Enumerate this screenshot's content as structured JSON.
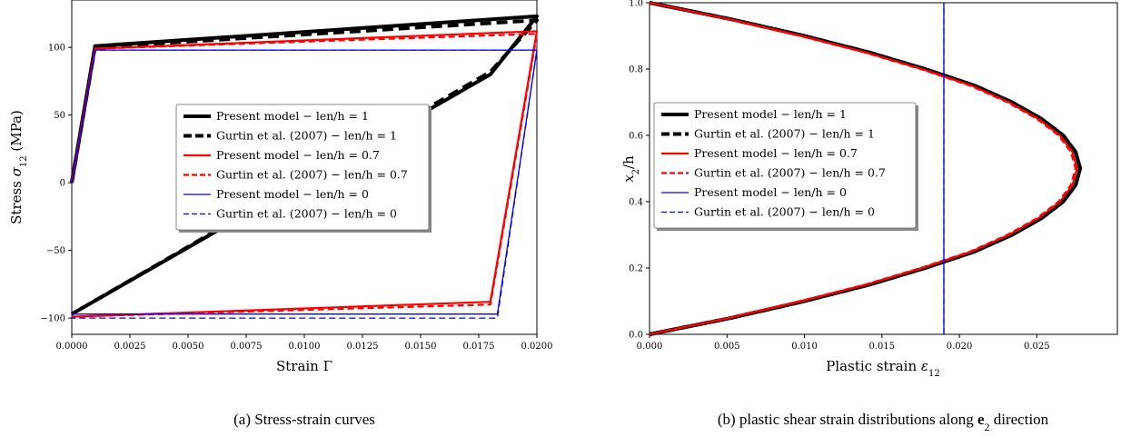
{
  "captions": {
    "a": "(a) Stress-strain curves",
    "b_prefix": "(b) plastic shear strain distributions along ",
    "b_vec": "e",
    "b_sub": "2",
    "b_suffix": " direction"
  },
  "chart_data": [
    {
      "type": "line",
      "xlabel": "Strain Γ",
      "ylabel": "Stress σ12 (MPa)",
      "ylabel_parts": {
        "pre": "Stress ",
        "sym": "σ",
        "sub": "12",
        "post": " (MPa)"
      },
      "xlim": [
        0.0,
        0.02
      ],
      "ylim": [
        -112,
        135
      ],
      "xticks": [
        "0.0000",
        "0.0025",
        "0.0050",
        "0.0075",
        "0.0100",
        "0.0125",
        "0.0150",
        "0.0175",
        "0.0200"
      ],
      "xtick_values": [
        0,
        0.0025,
        0.005,
        0.0075,
        0.01,
        0.0125,
        0.015,
        0.0175,
        0.02
      ],
      "yticks": [
        "−100",
        "−50",
        "0",
        "50",
        "100"
      ],
      "ytick_values": [
        -100,
        -50,
        0,
        50,
        100
      ],
      "grid": false,
      "legend_position": "center",
      "series": [
        {
          "name": "Present model − len/h = 1",
          "color": "#000000",
          "style": "solid",
          "width": 4,
          "x": [
            0,
            0.001,
            0.02,
            0.02,
            0.018,
            0.0,
            0.0
          ],
          "y": [
            0,
            101,
            123,
            123,
            80,
            -97,
            -97
          ]
        },
        {
          "name": "Gurtin et al. (2007) − len/h = 1",
          "color": "#000000",
          "style": "dashed",
          "width": 4,
          "x": [
            0,
            0.001,
            0.02,
            0.02,
            0.018,
            0.0,
            0.0
          ],
          "y": [
            0,
            100,
            120,
            120,
            82,
            -97,
            -97
          ]
        },
        {
          "name": "Present model − len/h = 0.7",
          "color": "#ff0000",
          "style": "solid",
          "width": 2.2,
          "x": [
            0,
            0.001,
            0.02,
            0.02,
            0.018,
            0.0,
            0.0
          ],
          "y": [
            0,
            99,
            112,
            112,
            -88,
            -99,
            -99
          ]
        },
        {
          "name": "Gurtin et al. (2007) − len/h = 0.7",
          "color": "#ff0000",
          "style": "dashed",
          "width": 2.2,
          "x": [
            0,
            0.001,
            0.02,
            0.02,
            0.018,
            0.0,
            0.0
          ],
          "y": [
            0,
            99,
            110,
            110,
            -90,
            -99,
            -99
          ]
        },
        {
          "name": "Present model − len/h = 0",
          "color": "#0000ff",
          "style": "solid",
          "width": 1.3,
          "x": [
            0,
            0.001,
            0.02,
            0.02,
            0.0183,
            0.0,
            0.0
          ],
          "y": [
            0,
            98,
            98,
            98,
            -97,
            -97,
            -97
          ]
        },
        {
          "name": "Gurtin et al. (2007) − len/h = 0",
          "color": "#0000ff",
          "style": "dashed",
          "width": 1.3,
          "x": [
            0,
            0.001,
            0.02,
            0.02,
            0.0183,
            0.0,
            0.0
          ],
          "y": [
            0,
            98,
            98,
            98,
            -100,
            -100,
            -100
          ]
        }
      ]
    },
    {
      "type": "line",
      "xlabel": "Plastic strain ε12",
      "xlabel_parts": {
        "pre": "Plastic strain ",
        "sym": "ε",
        "sub": "12"
      },
      "ylabel": "x2/h",
      "ylabel_parts": {
        "sym": "x",
        "sub": "2",
        "post": "/h"
      },
      "xlim": [
        0.0,
        0.0302
      ],
      "ylim": [
        0.0,
        1.0
      ],
      "xticks": [
        "0.000",
        "0.005",
        "0.010",
        "0.015",
        "0.020",
        "0.025"
      ],
      "xtick_values": [
        0,
        0.005,
        0.01,
        0.015,
        0.02,
        0.025
      ],
      "yticks": [
        "0.0",
        "0.2",
        "0.4",
        "0.6",
        "0.8",
        "1.0"
      ],
      "ytick_values": [
        0,
        0.2,
        0.4,
        0.6,
        0.8,
        1.0
      ],
      "grid": false,
      "legend_position": "center left",
      "series": [
        {
          "name": "Present model − len/h = 1",
          "color": "#000000",
          "style": "solid",
          "width": 4,
          "peak": 0.0278,
          "y": [
            0,
            0.05,
            0.1,
            0.15,
            0.2,
            0.25,
            0.3,
            0.35,
            0.4,
            0.45,
            0.5,
            0.55,
            0.6,
            0.65,
            0.7,
            0.75,
            0.8,
            0.85,
            0.9,
            0.95,
            1.0
          ],
          "x": [
            0.0,
            0.0053,
            0.01,
            0.0142,
            0.0178,
            0.021,
            0.0234,
            0.0253,
            0.0267,
            0.0275,
            0.0278,
            0.0275,
            0.0267,
            0.0253,
            0.0234,
            0.021,
            0.0178,
            0.0142,
            0.01,
            0.0053,
            0.0
          ]
        },
        {
          "name": "Gurtin et al. (2007) − len/h = 1",
          "color": "#000000",
          "style": "dashed",
          "width": 4,
          "y": [
            0,
            0.05,
            0.1,
            0.15,
            0.2,
            0.25,
            0.3,
            0.35,
            0.4,
            0.45,
            0.5,
            0.55,
            0.6,
            0.65,
            0.7,
            0.75,
            0.8,
            0.85,
            0.9,
            0.95,
            1.0
          ],
          "x": [
            0.0,
            0.0053,
            0.01,
            0.0142,
            0.0178,
            0.021,
            0.0234,
            0.0253,
            0.0267,
            0.0275,
            0.0278,
            0.0275,
            0.0267,
            0.0253,
            0.0234,
            0.021,
            0.0178,
            0.0142,
            0.01,
            0.0053,
            0.0
          ]
        },
        {
          "name": "Present model − len/h = 0.7",
          "color": "#ff0000",
          "style": "solid",
          "width": 2.2,
          "y": [
            0,
            0.05,
            0.1,
            0.15,
            0.2,
            0.25,
            0.3,
            0.35,
            0.4,
            0.45,
            0.5,
            0.55,
            0.6,
            0.65,
            0.7,
            0.75,
            0.8,
            0.85,
            0.9,
            0.95,
            1.0
          ],
          "x": [
            0.0,
            0.0052,
            0.0098,
            0.014,
            0.0176,
            0.0208,
            0.0232,
            0.0251,
            0.0265,
            0.0273,
            0.0276,
            0.0273,
            0.0265,
            0.0251,
            0.0232,
            0.0208,
            0.0176,
            0.014,
            0.0098,
            0.0052,
            0.0
          ]
        },
        {
          "name": "Gurtin et al. (2007) − len/h = 0.7",
          "color": "#ff0000",
          "style": "dashed",
          "width": 2.2,
          "y": [
            0,
            0.05,
            0.1,
            0.15,
            0.2,
            0.25,
            0.3,
            0.35,
            0.4,
            0.45,
            0.5,
            0.55,
            0.6,
            0.65,
            0.7,
            0.75,
            0.8,
            0.85,
            0.9,
            0.95,
            1.0
          ],
          "x": [
            0.0,
            0.0051,
            0.0097,
            0.0139,
            0.0175,
            0.0207,
            0.0231,
            0.025,
            0.0264,
            0.0272,
            0.0275,
            0.0272,
            0.0264,
            0.025,
            0.0231,
            0.0207,
            0.0175,
            0.0139,
            0.0097,
            0.0051,
            0.0
          ]
        },
        {
          "name": "Present model − len/h = 0",
          "color": "#0000ff",
          "style": "solid",
          "width": 1.3,
          "y": [
            0,
            1.0
          ],
          "x": [
            0.019,
            0.019
          ]
        },
        {
          "name": "Gurtin et al. (2007) − len/h = 0",
          "color": "#0000ff",
          "style": "dashed",
          "width": 1.3,
          "y": [
            0,
            1.0
          ],
          "x": [
            0.019,
            0.019
          ]
        }
      ]
    }
  ]
}
